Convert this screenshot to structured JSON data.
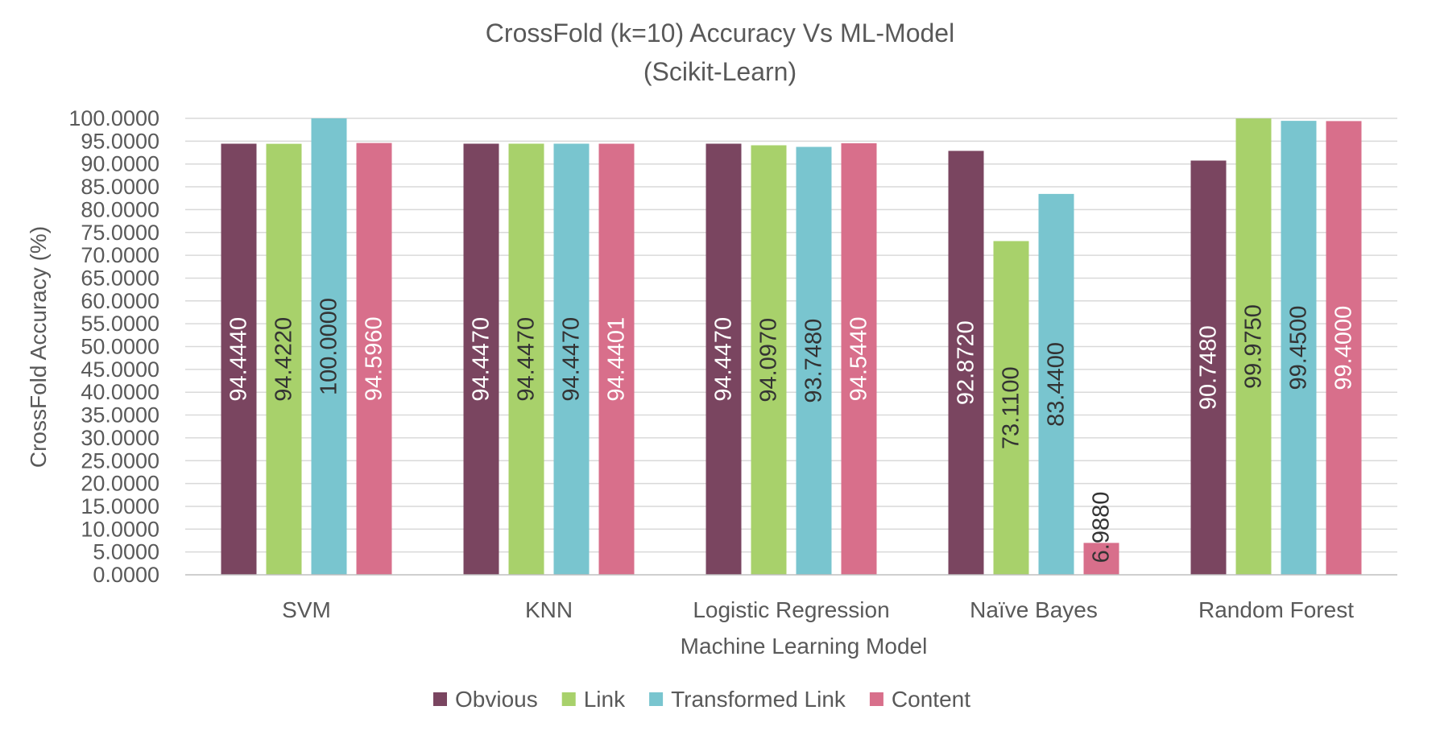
{
  "chart_data": {
    "type": "bar",
    "title": "CrossFold (k=10) Accuracy Vs ML-Model",
    "subtitle": "(Scikit-Learn)",
    "xlabel": "Machine Learning Model",
    "ylabel": "CrossFold Accuracy (%)",
    "ylim": [
      0,
      100
    ],
    "ytick_step": 5,
    "ytick_decimals": 4,
    "grid": true,
    "legend_position": "bottom",
    "categories": [
      "SVM",
      "KNN",
      "Logistic Regression",
      "Naïve Bayes",
      "Random Forest"
    ],
    "series": [
      {
        "name": "Obvious",
        "color": "#7A4560",
        "label_color": "#ffffff",
        "values": [
          94.444,
          94.447,
          94.447,
          92.872,
          90.748
        ],
        "labels": [
          "94.4440",
          "94.4470",
          "94.4470",
          "92.8720",
          "90.7480"
        ]
      },
      {
        "name": "Link",
        "color": "#A8D16B",
        "label_color": "#333333",
        "values": [
          94.422,
          94.447,
          94.097,
          73.11,
          99.975
        ],
        "labels": [
          "94.4220",
          "94.4470",
          "94.0970",
          "73.1100",
          "99.9750"
        ]
      },
      {
        "name": "Transformed Link",
        "color": "#79C5CF",
        "label_color": "#333333",
        "values": [
          100.0,
          94.447,
          93.748,
          83.44,
          99.45
        ],
        "labels": [
          "100.0000",
          "94.4470",
          "93.7480",
          "83.4400",
          "99.4500"
        ]
      },
      {
        "name": "Content",
        "color": "#D86F8B",
        "label_color": "#ffffff",
        "values": [
          94.596,
          94.4401,
          94.544,
          6.988,
          99.4
        ],
        "labels": [
          "94.5960",
          "94.4401",
          "94.5440",
          "6.9880",
          "99.4000"
        ]
      }
    ]
  }
}
